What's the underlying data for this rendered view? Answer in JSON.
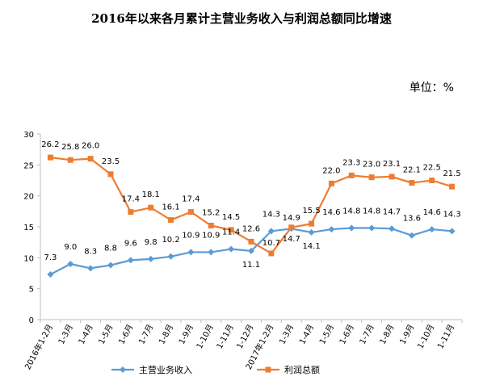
{
  "chart_data": {
    "type": "line",
    "title": "2016年以来各月累计主营业务收入与利润总额同比增速",
    "unit_label": "单位：%",
    "x": [
      "2016年1-2月",
      "1-3月",
      "1-4月",
      "1-5月",
      "1-6月",
      "1-7月",
      "1-8月",
      "1-9月",
      "1-10月",
      "1-11月",
      "1-12月",
      "2017年1-2月",
      "1-3月",
      "1-4月",
      "1-5月",
      "1-6月",
      "1-7月",
      "1-8月",
      "1-9月",
      "1-10月",
      "1-11月"
    ],
    "series": [
      {
        "name": "主营业务收入",
        "color": "#5b9bd5",
        "marker": "diamond",
        "values": [
          7.3,
          9.0,
          8.3,
          8.8,
          9.6,
          9.8,
          10.2,
          10.9,
          10.9,
          11.4,
          11.1,
          14.3,
          14.7,
          14.1,
          14.6,
          14.8,
          14.8,
          14.7,
          13.6,
          14.6,
          14.3
        ]
      },
      {
        "name": "利润总额",
        "color": "#ed7d31",
        "marker": "square",
        "values": [
          26.2,
          25.8,
          26.0,
          23.5,
          17.4,
          18.1,
          16.1,
          17.4,
          15.2,
          14.5,
          12.6,
          10.7,
          14.9,
          15.5,
          22.0,
          23.3,
          23.0,
          23.1,
          22.1,
          22.5,
          21.5
        ]
      }
    ],
    "ylim": [
      0,
      30
    ],
    "yticks": [
      0,
      5,
      10,
      15,
      20,
      25,
      30
    ],
    "grid": false,
    "legend_position": "bottom"
  }
}
